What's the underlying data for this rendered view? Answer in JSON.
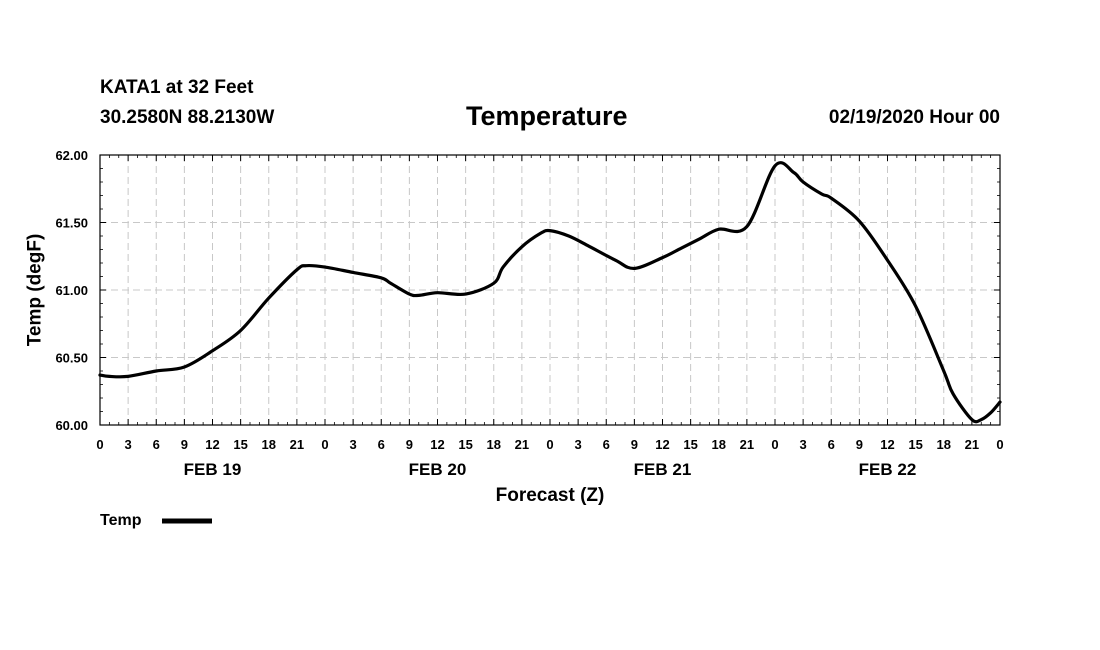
{
  "header": {
    "station": "KATA1 at 32 Feet",
    "coords": "30.2580N 88.2130W",
    "title": "Temperature",
    "datetime": "02/19/2020 Hour 00"
  },
  "chart_data": {
    "type": "line",
    "title": "Temperature",
    "xlabel": "Forecast (Z)",
    "ylabel": "Temp (degF)",
    "ylim": [
      60.0,
      62.0
    ],
    "yticks": [
      "60.00",
      "60.50",
      "61.00",
      "61.50",
      "62.00"
    ],
    "xlim_hours": [
      0,
      96
    ],
    "xtick_hours": [
      0,
      3,
      6,
      9,
      12,
      15,
      18,
      21,
      24,
      27,
      30,
      33,
      36,
      39,
      42,
      45,
      48,
      51,
      54,
      57,
      60,
      63,
      66,
      69,
      72,
      75,
      78,
      81,
      84,
      87,
      90,
      93,
      96
    ],
    "xtick_labels": [
      "0",
      "3",
      "6",
      "9",
      "12",
      "15",
      "18",
      "21",
      "0",
      "3",
      "6",
      "9",
      "12",
      "15",
      "18",
      "21",
      "0",
      "3",
      "6",
      "9",
      "12",
      "15",
      "18",
      "21",
      "0",
      "3",
      "6",
      "9",
      "12",
      "15",
      "18",
      "21",
      "0"
    ],
    "day_labels": [
      {
        "label": "FEB 19",
        "hour": 12
      },
      {
        "label": "FEB 20",
        "hour": 36
      },
      {
        "label": "FEB 21",
        "hour": 60
      },
      {
        "label": "FEB 22",
        "hour": 84
      }
    ],
    "grid": true,
    "legend": {
      "label": "Temp",
      "placement": "bottom-left"
    },
    "series": [
      {
        "name": "Temp",
        "color": "#000000",
        "x": [
          0,
          1,
          3,
          6,
          9,
          12,
          15,
          18,
          21,
          22,
          24,
          27,
          30,
          31,
          33,
          34,
          36,
          39,
          42,
          43,
          45,
          47,
          48,
          50,
          52,
          55,
          57,
          60,
          62,
          64,
          66,
          69,
          72,
          74,
          75,
          77,
          78,
          81,
          84,
          87,
          90,
          91,
          93,
          94,
          95,
          96
        ],
        "values": [
          60.37,
          60.36,
          60.36,
          60.4,
          60.43,
          60.55,
          60.7,
          60.94,
          61.15,
          61.18,
          61.17,
          61.13,
          61.09,
          61.05,
          60.97,
          60.96,
          60.98,
          60.97,
          61.05,
          61.17,
          61.32,
          61.42,
          61.44,
          61.4,
          61.33,
          61.22,
          61.16,
          61.24,
          61.31,
          61.38,
          61.45,
          61.47,
          61.92,
          61.87,
          61.8,
          61.71,
          61.68,
          61.51,
          61.22,
          60.88,
          60.4,
          60.23,
          60.04,
          60.04,
          60.09,
          60.17
        ]
      }
    ]
  }
}
